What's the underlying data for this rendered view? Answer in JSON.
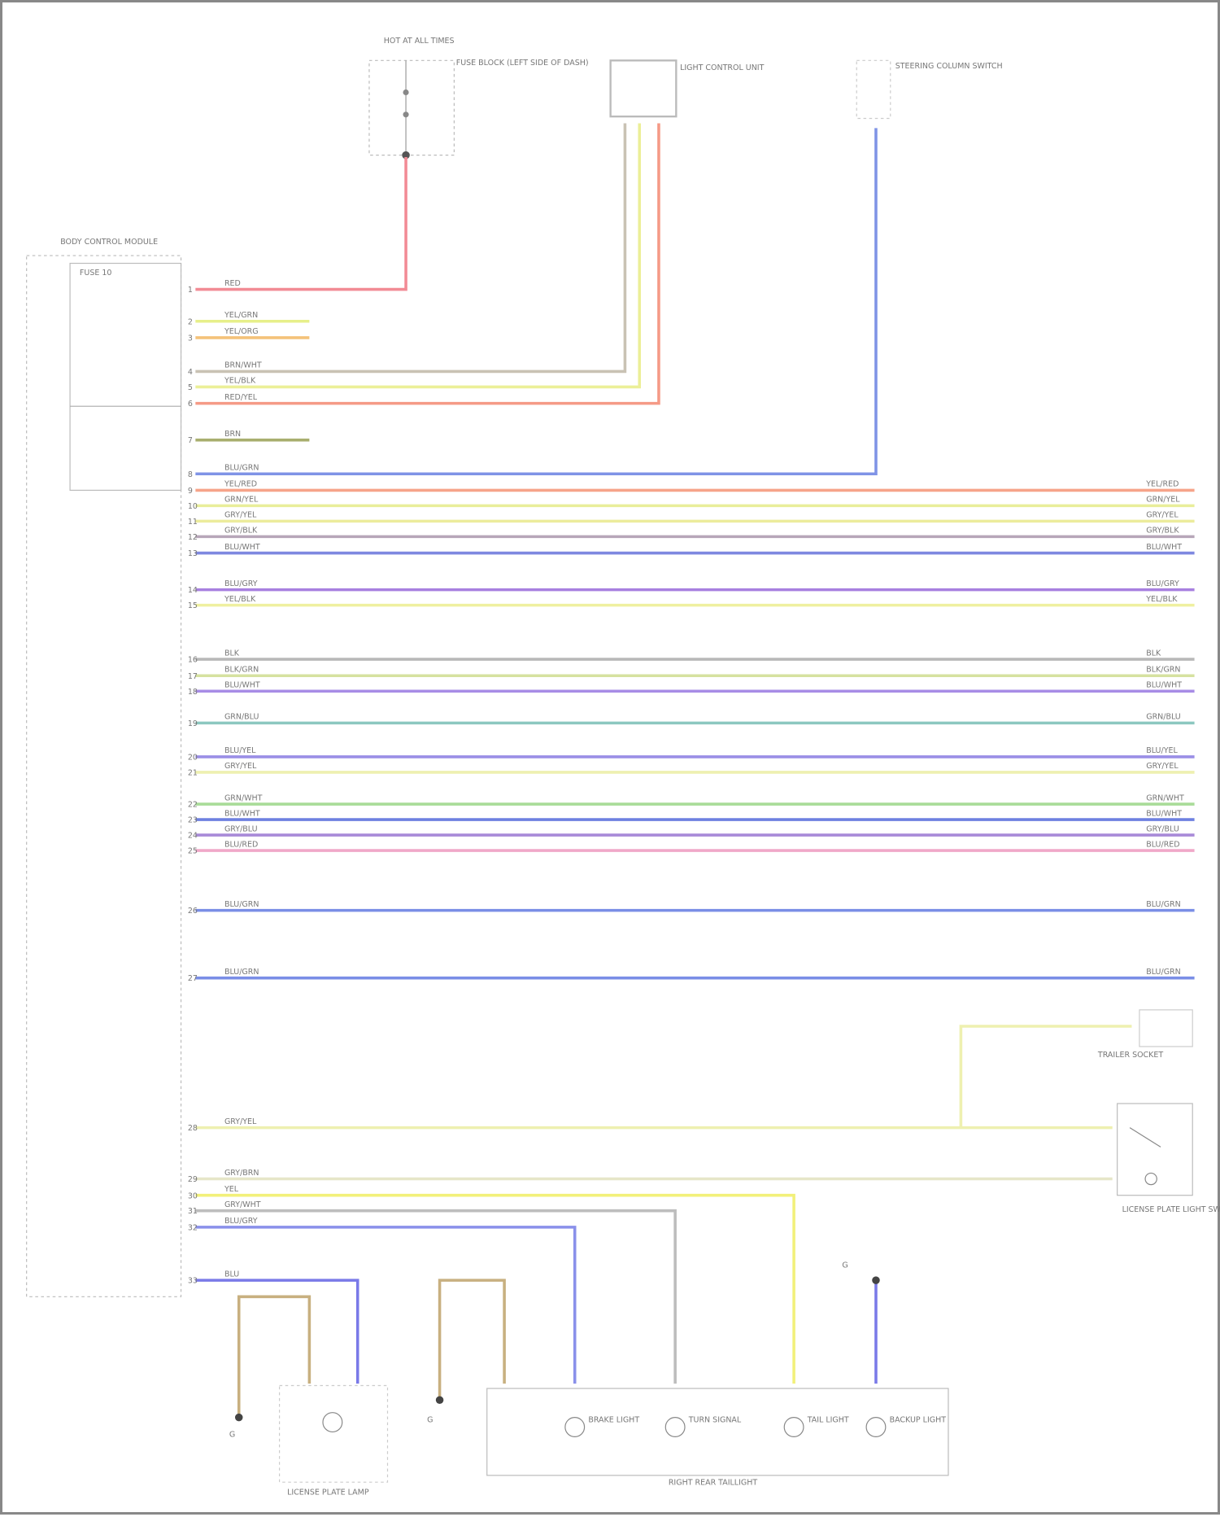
{
  "diagram": {
    "footer_code": "",
    "components": {
      "fuse_block": {
        "title": "HOT AT ALL TIMES",
        "label": "FUSE BLOCK (LEFT SIDE OF DASH)"
      },
      "light_module": {
        "label": "LIGHT CONTROL UNIT"
      },
      "steering_column": {
        "label": "STEERING COLUMN SWITCH"
      },
      "controller": {
        "label": "BODY CONTROL MODULE",
        "fuse": "FUSE 10",
        "ground": "G"
      },
      "trailer_socket": {
        "label": "TRAILER SOCKET"
      },
      "license_switch": {
        "label": "LICENSE PLATE LIGHT SWITCH"
      },
      "tail_assembly": {
        "label": "RIGHT REAR TAILLIGHT"
      },
      "bulbs": [
        "BRAKE LIGHT",
        "TURN SIGNAL",
        "TAIL LIGHT",
        "BACKUP LIGHT"
      ],
      "license_lamp": {
        "label": "LICENSE PLATE LAMP"
      },
      "ground_left": {
        "label": "G"
      },
      "ground_mid": {
        "label": "G"
      },
      "ground_rear": {
        "label": "G"
      }
    },
    "wires": [
      {
        "pin": "1",
        "code": "RED",
        "color": "#f28b95"
      },
      {
        "pin": "2",
        "code": "YEL/GRN",
        "color": "#e7ef8a"
      },
      {
        "pin": "3",
        "code": "YEL/ORG",
        "color": "#f4c27a"
      },
      {
        "pin": "4",
        "code": "BRN/WHT",
        "color": "#c9c2b4"
      },
      {
        "pin": "5",
        "code": "YEL/BLK",
        "color": "#ecef98"
      },
      {
        "pin": "6",
        "code": "RED/YEL",
        "color": "#f59a86"
      },
      {
        "pin": "7",
        "code": "BRN",
        "color": "#a8ae6e"
      },
      {
        "pin": "8",
        "code": "BLU/GRN",
        "color": "#7f93e6"
      },
      {
        "pin": "9",
        "code": "YEL/RED",
        "color": "#f6a48a"
      },
      {
        "pin": "10",
        "code": "GRN/YEL",
        "color": "#e9ee9a"
      },
      {
        "pin": "11",
        "code": "GRY/YEL",
        "color": "#ecec9c"
      },
      {
        "pin": "12",
        "code": "GRY/BLK",
        "color": "#b7a6b9"
      },
      {
        "pin": "13",
        "code": "BLU/WHT",
        "color": "#7e88e0"
      },
      {
        "pin": "14",
        "code": "BLU/GRY",
        "color": "#a880e0"
      },
      {
        "pin": "15",
        "code": "YEL/BLK",
        "color": "#eff0a0"
      },
      {
        "pin": "16",
        "code": "BLK",
        "color": "#b8b8b8"
      },
      {
        "pin": "17",
        "code": "BLK/GRN",
        "color": "#d6e2a0"
      },
      {
        "pin": "18",
        "code": "BLU/WHT",
        "color": "#a78ce6"
      },
      {
        "pin": "19",
        "code": "GRN/BLU",
        "color": "#8cc8c0"
      },
      {
        "pin": "20",
        "code": "BLU/YEL",
        "color": "#9a8ee6"
      },
      {
        "pin": "21",
        "code": "GRY/YEL",
        "color": "#eef0b0"
      },
      {
        "pin": "22",
        "code": "GRN/WHT",
        "color": "#a8dc98"
      },
      {
        "pin": "23",
        "code": "BLU/WHT",
        "color": "#6e80e0"
      },
      {
        "pin": "24",
        "code": "GRY/BLU",
        "color": "#a88ad8"
      },
      {
        "pin": "25",
        "code": "BLU/RED",
        "color": "#f0a8c8"
      },
      {
        "pin": "26",
        "code": "BLU/GRN",
        "color": "#7a8ee6"
      },
      {
        "pin": "27",
        "code": "BLU/GRN",
        "color": "#7a8ee6"
      },
      {
        "pin": "28",
        "code": "GRY/YEL",
        "color": "#eef0b0"
      },
      {
        "pin": "29",
        "code": "GRY/BRN",
        "color": "#e6e6c8"
      },
      {
        "pin": "30",
        "code": "YEL",
        "color": "#f2f07a"
      },
      {
        "pin": "31",
        "code": "GRY/WHT",
        "color": "#bdbdbd"
      },
      {
        "pin": "32",
        "code": "BLU/GRY",
        "color": "#8a90ea"
      },
      {
        "pin": "33",
        "code": "BLU",
        "color": "#7a7ae8"
      }
    ],
    "ground_wires": {
      "brown": "#c8b080",
      "code": "BRN"
    }
  }
}
